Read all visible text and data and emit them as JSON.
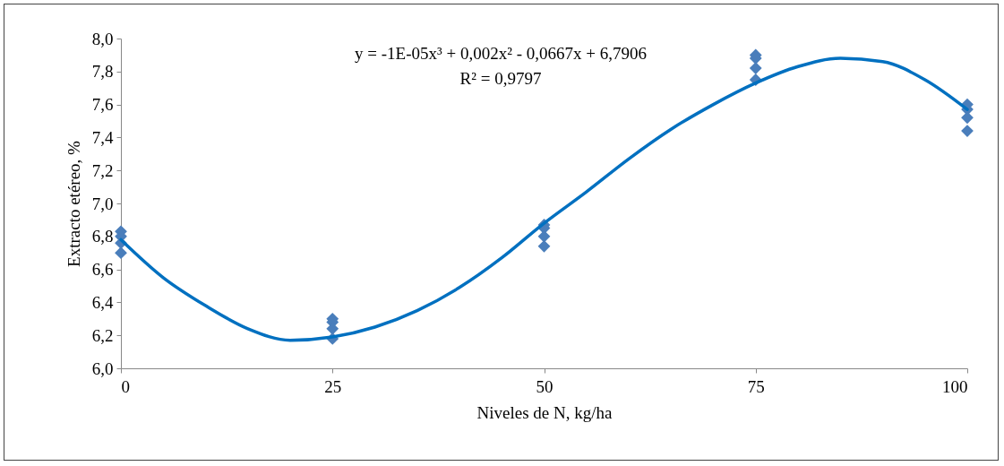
{
  "chart_data": {
    "type": "scatter",
    "xlabel": "Niveles de N, kg/ha",
    "ylabel": "Extracto etéreo, %",
    "annotations": [
      "y = -1E-05x³ + 0,002x² - 0,0667x + 6,7906",
      "R² = 0,9797"
    ],
    "xlim": [
      0,
      100
    ],
    "xticks": [
      0,
      25,
      50,
      75,
      100
    ],
    "ylim": [
      6,
      8
    ],
    "yticks": [
      {
        "value": 6,
        "label": "6,0"
      },
      {
        "value": 6.2,
        "label": "6,2"
      },
      {
        "value": 6.4,
        "label": "6,4"
      },
      {
        "value": 6.6,
        "label": "6,6"
      },
      {
        "value": 6.8,
        "label": "6,8"
      },
      {
        "value": 7,
        "label": "7,0"
      },
      {
        "value": 7.2,
        "label": "7,2"
      },
      {
        "value": 7.4,
        "label": "7,4"
      },
      {
        "value": 7.6,
        "label": "7,6"
      },
      {
        "value": 7.8,
        "label": "7,8"
      },
      {
        "value": 8,
        "label": "8,0"
      }
    ],
    "grid": false,
    "series": [
      {
        "type": "scatter",
        "marker": "diamond",
        "color": "#4a7ebb",
        "x": [
          0,
          0,
          0,
          0,
          25,
          25,
          25,
          25,
          50,
          50,
          50,
          50,
          75,
          75,
          75,
          75,
          100,
          100,
          100,
          100
        ],
        "values": [
          6.83,
          6.8,
          6.76,
          6.7,
          6.3,
          6.28,
          6.24,
          6.18,
          6.87,
          6.85,
          6.8,
          6.74,
          7.9,
          7.88,
          7.82,
          7.75,
          7.6,
          7.57,
          7.52,
          7.44
        ]
      },
      {
        "type": "line",
        "marker": "none",
        "color": "#0070c0",
        "x": [
          0,
          5,
          10,
          15,
          20,
          25,
          30,
          35,
          40,
          45,
          50,
          55,
          60,
          65,
          70,
          75,
          80,
          85,
          90,
          95,
          100
        ],
        "values": [
          6.78,
          6.55,
          6.38,
          6.24,
          6.17,
          6.19,
          6.25,
          6.35,
          6.49,
          6.67,
          6.88,
          7.07,
          7.27,
          7.45,
          7.6,
          7.73,
          7.83,
          7.88,
          7.86,
          7.75,
          7.57
        ]
      }
    ]
  }
}
